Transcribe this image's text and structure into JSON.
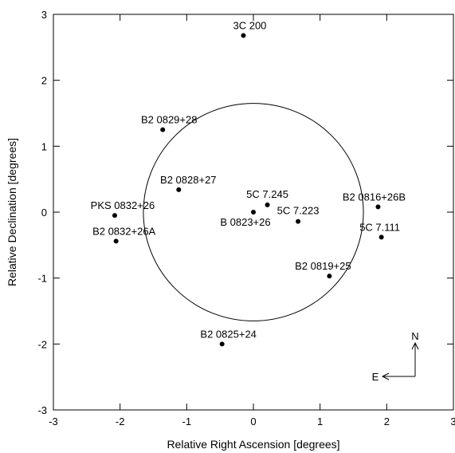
{
  "chart_data": {
    "type": "scatter",
    "xlabel": "Relative Right Ascension [degrees]",
    "ylabel": "Relative Declination [degrees]",
    "xlim": [
      -3,
      3
    ],
    "ylim": [
      -3,
      3
    ],
    "x_ticks": [
      "-3",
      "-2",
      "-1",
      "0",
      "1",
      "2",
      "3"
    ],
    "y_ticks": [
      "-3",
      "-2",
      "-1",
      "0",
      "1",
      "2",
      "3"
    ],
    "grid": false,
    "legend": "none",
    "circle": {
      "center": [
        0,
        0
      ],
      "radius": 1.65
    },
    "points": [
      {
        "name": "3C 200",
        "x": -0.15,
        "y": 2.68
      },
      {
        "name": "B2 0829+28",
        "x": -1.36,
        "y": 1.25
      },
      {
        "name": "B2 0828+27",
        "x": -1.12,
        "y": 0.34
      },
      {
        "name": "PKS 0832+26",
        "x": -2.08,
        "y": -0.05
      },
      {
        "name": "B2 0832+26A",
        "x": -2.06,
        "y": -0.44
      },
      {
        "name": "5C 7.245",
        "x": 0.21,
        "y": 0.11
      },
      {
        "name": "B 0823+26",
        "x": 0.0,
        "y": 0.0
      },
      {
        "name": "5C 7.223",
        "x": 0.67,
        "y": -0.14
      },
      {
        "name": "B2 0816+26B",
        "x": 1.87,
        "y": 0.08
      },
      {
        "name": "5C 7.111",
        "x": 1.92,
        "y": -0.38
      },
      {
        "name": "B2 0819+25",
        "x": 1.14,
        "y": -0.97
      },
      {
        "name": "B2 0825+24",
        "x": -0.47,
        "y": -2.0
      }
    ],
    "compass": {
      "north": "N",
      "east": "E"
    }
  }
}
